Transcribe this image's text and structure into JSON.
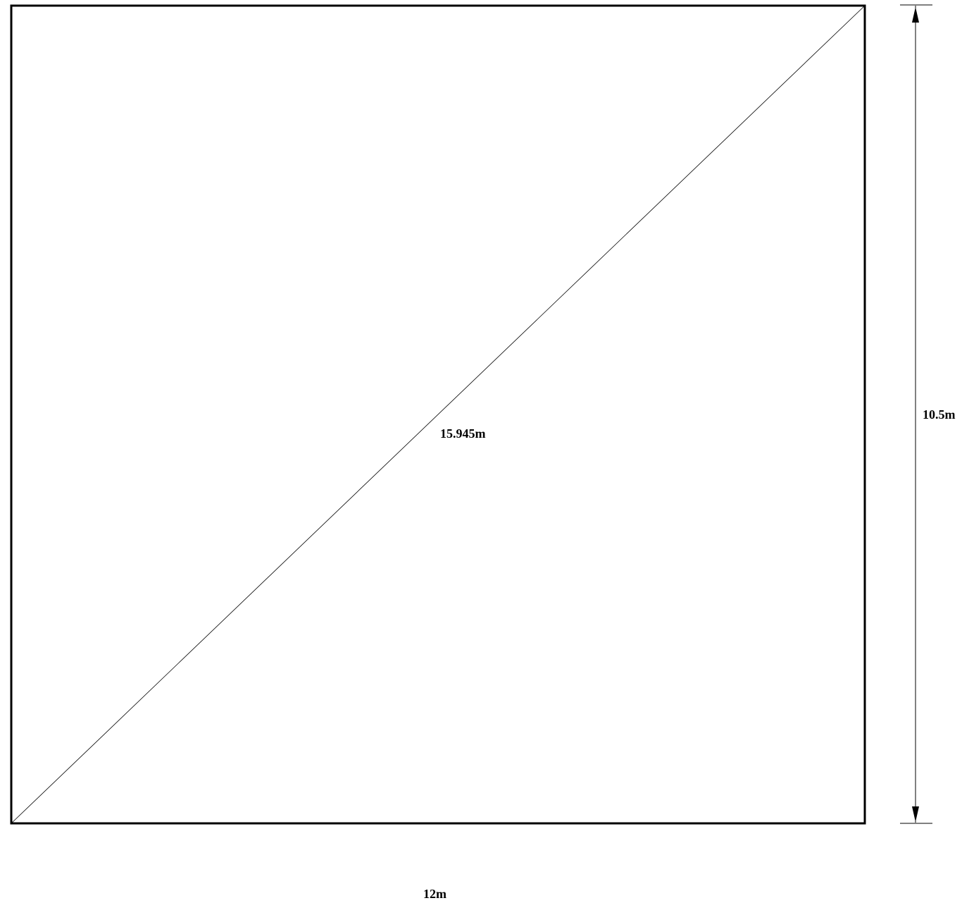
{
  "drawing": {
    "diagonal_label": "15.945m",
    "height_label": "10.5m",
    "width_label": "12m"
  },
  "colors": {
    "line": "#000000",
    "background": "#ffffff"
  }
}
